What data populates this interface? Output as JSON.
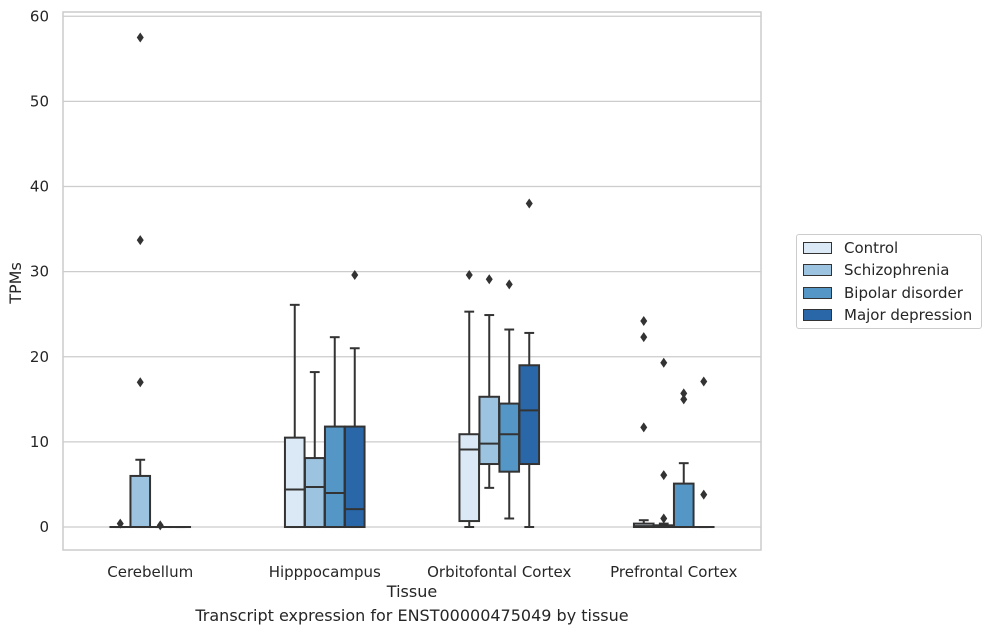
{
  "chart_data": {
    "type": "box",
    "title": "Transcript expression for ENST00000475049 by tissue",
    "xlabel": "Tissue",
    "ylabel": "TPMs",
    "ylim": [
      -2.7,
      60.5
    ],
    "yticks": [
      0,
      10,
      20,
      30,
      40,
      50,
      60
    ],
    "grid": true,
    "legend_position": "right",
    "categories": [
      "Cerebellum",
      "Hipppocampus",
      "Orbitofontal Cortex",
      "Prefrontal Cortex"
    ],
    "series": [
      {
        "name": "Control",
        "color": "#dbe8f5",
        "boxes": [
          {
            "min": 0,
            "q1": 0,
            "median": 0,
            "q3": 0,
            "max": 0,
            "outliers": [
              0.4
            ]
          },
          {
            "min": 0,
            "q1": 0,
            "median": 4.4,
            "q3": 10.5,
            "max": 26.1,
            "outliers": []
          },
          {
            "min": 0,
            "q1": 0.7,
            "median": 9.1,
            "q3": 10.9,
            "max": 25.3,
            "outliers": [
              29.6
            ]
          },
          {
            "min": 0,
            "q1": 0,
            "median": 0.1,
            "q3": 0.4,
            "max": 0.8,
            "outliers": [
              24.2,
              22.3,
              11.7
            ]
          }
        ]
      },
      {
        "name": "Schizophrenia",
        "color": "#9cc4e0",
        "boxes": [
          {
            "min": 0,
            "q1": 0,
            "median": 0,
            "q3": 6.0,
            "max": 7.9,
            "outliers": [
              57.5,
              33.7,
              17.0
            ]
          },
          {
            "min": 0,
            "q1": 0,
            "median": 4.7,
            "q3": 8.1,
            "max": 18.2,
            "outliers": []
          },
          {
            "min": 4.6,
            "q1": 7.4,
            "median": 9.8,
            "q3": 15.3,
            "max": 24.9,
            "outliers": [
              29.1
            ]
          },
          {
            "min": 0,
            "q1": 0,
            "median": 0,
            "q3": 0.2,
            "max": 0.4,
            "outliers": [
              19.3,
              6.1,
              1.0
            ]
          }
        ]
      },
      {
        "name": "Bipolar disorder",
        "color": "#5497c7",
        "boxes": [
          {
            "min": 0,
            "q1": 0,
            "median": 0,
            "q3": 0,
            "max": 0,
            "outliers": [
              0.2
            ]
          },
          {
            "min": 0,
            "q1": 0,
            "median": 4.0,
            "q3": 11.8,
            "max": 22.3,
            "outliers": []
          },
          {
            "min": 1.0,
            "q1": 6.5,
            "median": 10.9,
            "q3": 14.5,
            "max": 23.2,
            "outliers": [
              28.5
            ]
          },
          {
            "min": 0,
            "q1": 0,
            "median": 0,
            "q3": 5.1,
            "max": 7.5,
            "outliers": [
              15.7,
              15.0
            ]
          }
        ]
      },
      {
        "name": "Major depression",
        "color": "#2967a8",
        "boxes": [
          {
            "min": 0,
            "q1": 0,
            "median": 0,
            "q3": 0,
            "max": 0,
            "outliers": []
          },
          {
            "min": 0,
            "q1": 0,
            "median": 2.1,
            "q3": 11.8,
            "max": 21.0,
            "outliers": [
              29.6
            ]
          },
          {
            "min": 0,
            "q1": 7.4,
            "median": 13.7,
            "q3": 19.0,
            "max": 22.8,
            "outliers": [
              38.0
            ]
          },
          {
            "min": 0,
            "q1": 0,
            "median": 0,
            "q3": 0,
            "max": 0,
            "outliers": [
              17.1,
              3.8
            ]
          }
        ]
      }
    ]
  }
}
